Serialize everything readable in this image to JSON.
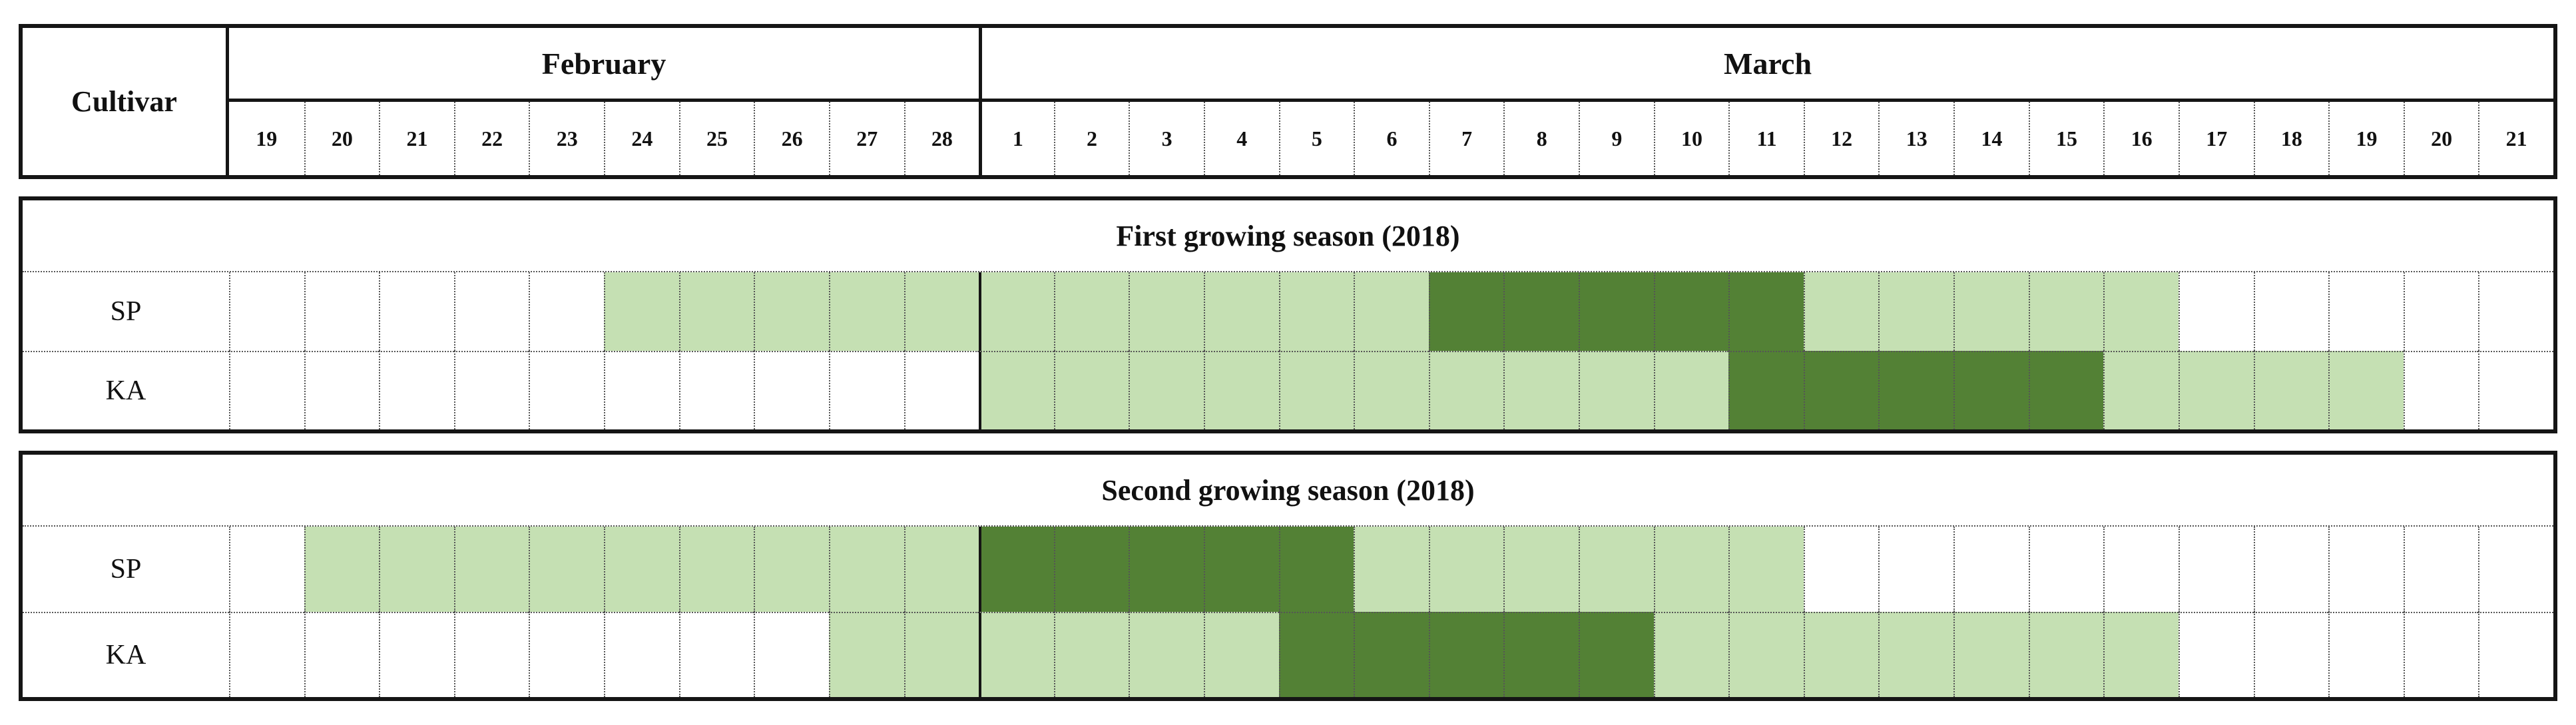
{
  "table": {
    "cultivar_header": "Cultivar",
    "months": [
      {
        "name": "February",
        "days": [
          "19",
          "20",
          "21",
          "22",
          "23",
          "24",
          "25",
          "26",
          "27",
          "28"
        ]
      },
      {
        "name": "March",
        "days": [
          "1",
          "2",
          "3",
          "4",
          "5",
          "6",
          "7",
          "8",
          "9",
          "10",
          "11",
          "12",
          "13",
          "14",
          "15",
          "16",
          "17",
          "18",
          "19",
          "20",
          "21"
        ]
      }
    ]
  },
  "legend": {
    "light_green": "#C5E0B3",
    "dark_green": "#538135"
  },
  "sections": [
    {
      "title": "First growing season (2018)",
      "rows": [
        {
          "label": "SP",
          "cells": [
            "",
            "",
            "",
            "",
            "",
            "L",
            "L",
            "L",
            "L",
            "L",
            "L",
            "L",
            "L",
            "L",
            "L",
            "L",
            "D",
            "D",
            "D",
            "D",
            "D",
            "L",
            "L",
            "L",
            "L",
            "L",
            "",
            "",
            "",
            "",
            ""
          ]
        },
        {
          "label": "KA",
          "cells": [
            "",
            "",
            "",
            "",
            "",
            "",
            "",
            "",
            "",
            "",
            "L",
            "L",
            "L",
            "L",
            "L",
            "L",
            "L",
            "L",
            "L",
            "L",
            "D",
            "D",
            "D",
            "D",
            "D",
            "L",
            "L",
            "L",
            "L",
            "",
            ""
          ]
        }
      ]
    },
    {
      "title": "Second growing season (2018)",
      "rows": [
        {
          "label": "SP",
          "cells": [
            "",
            "L",
            "L",
            "L",
            "L",
            "L",
            "L",
            "L",
            "L",
            "L",
            "D",
            "D",
            "D",
            "D",
            "D",
            "L",
            "L",
            "L",
            "L",
            "L",
            "L",
            "",
            "",
            "",
            "",
            "",
            "",
            "",
            "",
            "",
            ""
          ]
        },
        {
          "label": "KA",
          "cells": [
            "",
            "",
            "",
            "",
            "",
            "",
            "",
            "",
            "L",
            "L",
            "L",
            "L",
            "L",
            "L",
            "D",
            "D",
            "D",
            "D",
            "D",
            "L",
            "L",
            "L",
            "L",
            "L",
            "L",
            "L",
            "",
            "",
            "",
            "",
            ""
          ]
        }
      ]
    }
  ],
  "chart_data": {
    "type": "table",
    "title": "Growing-period calendar for cultivars SP and KA",
    "x_axis": {
      "months": [
        {
          "name": "February",
          "days": [
            19,
            20,
            21,
            22,
            23,
            24,
            25,
            26,
            27,
            28
          ]
        },
        {
          "name": "March",
          "days": [
            1,
            2,
            3,
            4,
            5,
            6,
            7,
            8,
            9,
            10,
            11,
            12,
            13,
            14,
            15,
            16,
            17,
            18,
            19,
            20,
            21
          ]
        }
      ]
    },
    "colors": {
      "light_green": "#C5E0B3",
      "dark_green": "#538135"
    },
    "rows": [
      {
        "season": "First growing season (2018)",
        "cultivar": "SP",
        "light_green_ranges": [
          "Feb 24 - Mar 6",
          "Mar 12 - Mar 16"
        ],
        "dark_green_ranges": [
          "Mar 7 - Mar 11"
        ]
      },
      {
        "season": "First growing season (2018)",
        "cultivar": "KA",
        "light_green_ranges": [
          "Mar 1 - Mar 10",
          "Mar 16 - Mar 19"
        ],
        "dark_green_ranges": [
          "Mar 11 - Mar 15"
        ]
      },
      {
        "season": "Second growing season (2018)",
        "cultivar": "SP",
        "light_green_ranges": [
          "Feb 20 - Feb 28",
          "Mar 6 - Mar 11"
        ],
        "dark_green_ranges": [
          "Mar 1 - Mar 5"
        ]
      },
      {
        "season": "Second growing season (2018)",
        "cultivar": "KA",
        "light_green_ranges": [
          "Feb 27 - Mar 4",
          "Mar 10 - Mar 16"
        ],
        "dark_green_ranges": [
          "Mar 5 - Mar 9"
        ]
      }
    ]
  }
}
